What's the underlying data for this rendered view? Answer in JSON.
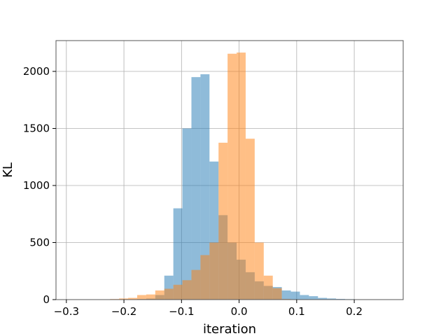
{
  "chart_data": {
    "type": "histogram",
    "title": "",
    "xlabel": "iteration",
    "ylabel": "KL",
    "xlim": [
      -0.318,
      0.285
    ],
    "ylim": [
      0,
      2270
    ],
    "grid": true,
    "xticks": [
      -0.3,
      -0.2,
      -0.1,
      0.0,
      0.1,
      0.2
    ],
    "xtick_labels": [
      "−0.3",
      "−0.2",
      "−0.1",
      "0.0",
      "0.1",
      "0.2"
    ],
    "yticks": [
      0,
      500,
      1000,
      1500,
      2000
    ],
    "ytick_labels": [
      "0",
      "500",
      "1000",
      "1500",
      "2000"
    ],
    "series": [
      {
        "color": "#1f77b4",
        "opacity": 0.5,
        "bin_width": 0.0157,
        "bin_starts": [
          -0.2869,
          -0.2712,
          -0.2555,
          -0.2398,
          -0.2241,
          -0.2084,
          -0.1927,
          -0.177,
          -0.1613,
          -0.1456,
          -0.1299,
          -0.1142,
          -0.0985,
          -0.0828,
          -0.0671,
          -0.0514,
          -0.0357,
          -0.02,
          -0.0043,
          0.0114,
          0.0271,
          0.0428,
          0.0585,
          0.0742,
          0.0899,
          0.1056,
          0.1213,
          0.137,
          0.1527,
          0.1684,
          0.1841,
          0.1998,
          0.2155,
          0.2312,
          0.2469
        ],
        "counts": [
          1,
          1,
          1,
          1,
          2,
          2,
          3,
          5,
          9,
          40,
          210,
          800,
          1500,
          1950,
          1975,
          1210,
          740,
          500,
          350,
          240,
          160,
          120,
          110,
          80,
          70,
          40,
          30,
          15,
          10,
          6,
          4,
          3,
          2,
          1,
          1
        ]
      },
      {
        "color": "#ff7f0e",
        "opacity": 0.5,
        "bin_width": 0.0157,
        "bin_starts": [
          -0.2869,
          -0.2712,
          -0.2555,
          -0.2398,
          -0.2241,
          -0.2084,
          -0.1927,
          -0.177,
          -0.1613,
          -0.1456,
          -0.1299,
          -0.1142,
          -0.0985,
          -0.0828,
          -0.0671,
          -0.0514,
          -0.0357,
          -0.02,
          -0.0043,
          0.0114,
          0.0271,
          0.0428,
          0.0585,
          0.0742
        ],
        "counts": [
          1,
          1,
          2,
          3,
          5,
          10,
          15,
          40,
          45,
          80,
          95,
          130,
          170,
          260,
          390,
          500,
          1375,
          2155,
          2165,
          1410,
          500,
          210,
          100,
          5
        ]
      }
    ]
  }
}
